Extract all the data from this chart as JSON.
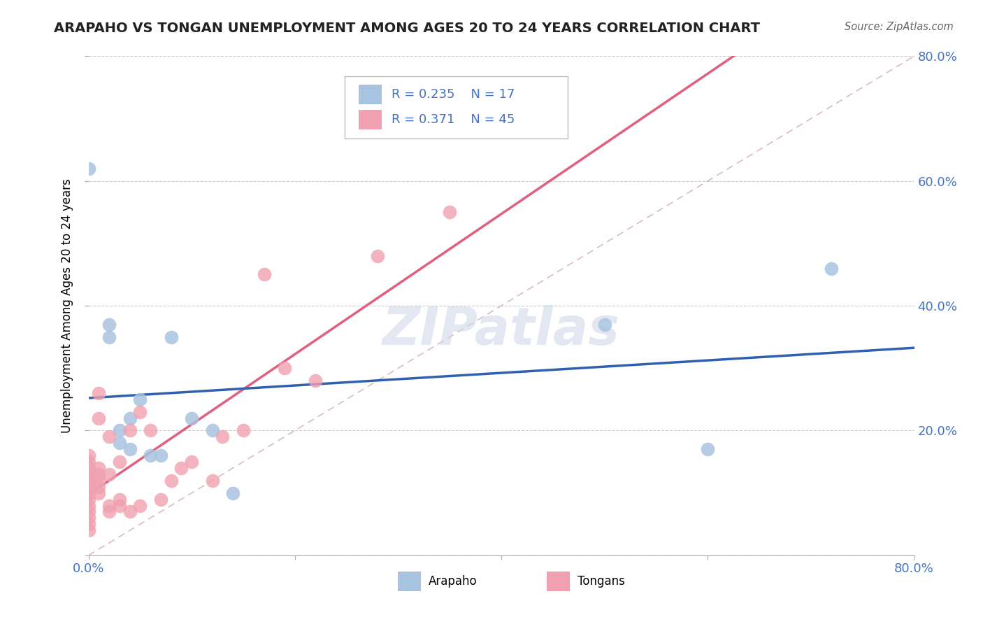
{
  "title": "ARAPAHO VS TONGAN UNEMPLOYMENT AMONG AGES 20 TO 24 YEARS CORRELATION CHART",
  "source": "Source: ZipAtlas.com",
  "ylabel_label": "Unemployment Among Ages 20 to 24 years",
  "xlim": [
    0.0,
    0.8
  ],
  "ylim": [
    0.0,
    0.8
  ],
  "xticks": [
    0.0,
    0.2,
    0.4,
    0.6,
    0.8
  ],
  "yticks": [
    0.0,
    0.2,
    0.4,
    0.6,
    0.8
  ],
  "background_color": "#ffffff",
  "grid_color": "#cccccc",
  "arapaho_color": "#a8c4e0",
  "tongan_color": "#f0a0b0",
  "arapaho_line_color": "#3060b0",
  "tongan_line_color": "#e06080",
  "diagonal_dash_color": "#c8a0a8",
  "arapaho_R": "0.235",
  "arapaho_N": "17",
  "tongan_R": "0.371",
  "tongan_N": "45",
  "legend_label_arapaho": "Arapaho",
  "legend_label_tongan": "Tongans",
  "stat_color": "#4472c4",
  "arapaho_x": [
    0.0,
    0.02,
    0.02,
    0.03,
    0.03,
    0.04,
    0.04,
    0.05,
    0.06,
    0.07,
    0.08,
    0.1,
    0.12,
    0.14,
    0.5,
    0.6,
    0.72
  ],
  "arapaho_y": [
    0.62,
    0.35,
    0.37,
    0.18,
    0.2,
    0.22,
    0.17,
    0.25,
    0.16,
    0.16,
    0.35,
    0.22,
    0.2,
    0.1,
    0.37,
    0.17,
    0.46
  ],
  "tongan_x": [
    0.0,
    0.0,
    0.0,
    0.0,
    0.0,
    0.0,
    0.0,
    0.0,
    0.0,
    0.0,
    0.0,
    0.0,
    0.0,
    0.0,
    0.01,
    0.01,
    0.01,
    0.01,
    0.01,
    0.01,
    0.01,
    0.02,
    0.02,
    0.02,
    0.02,
    0.03,
    0.03,
    0.03,
    0.04,
    0.04,
    0.05,
    0.05,
    0.06,
    0.07,
    0.08,
    0.09,
    0.1,
    0.12,
    0.13,
    0.15,
    0.17,
    0.19,
    0.22,
    0.28,
    0.35
  ],
  "tongan_y": [
    0.04,
    0.05,
    0.06,
    0.07,
    0.08,
    0.09,
    0.1,
    0.1,
    0.11,
    0.12,
    0.13,
    0.14,
    0.15,
    0.16,
    0.1,
    0.11,
    0.12,
    0.13,
    0.14,
    0.22,
    0.26,
    0.07,
    0.08,
    0.13,
    0.19,
    0.08,
    0.09,
    0.15,
    0.07,
    0.2,
    0.08,
    0.23,
    0.2,
    0.09,
    0.12,
    0.14,
    0.15,
    0.12,
    0.19,
    0.2,
    0.45,
    0.3,
    0.28,
    0.48,
    0.55
  ]
}
